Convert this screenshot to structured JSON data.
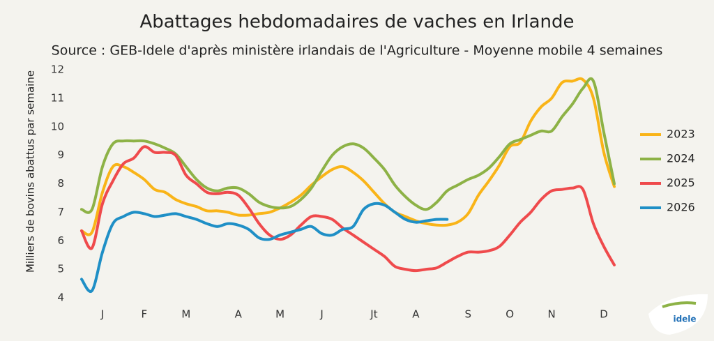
{
  "chart_data": {
    "type": "line",
    "title": "Abattages hebdomadaires de vaches en Irlande",
    "subtitle": "Source : GEB-Idele d'après ministère irlandais de l'Agriculture - Moyenne mobile 4 semaines",
    "y_label": "Milliers de bovins abattus par semaine",
    "categories": [
      null,
      null,
      "J",
      null,
      null,
      null,
      "F",
      null,
      null,
      null,
      "M",
      null,
      null,
      null,
      null,
      "A",
      null,
      null,
      null,
      "M",
      null,
      null,
      null,
      "J",
      null,
      null,
      null,
      null,
      "Jt",
      null,
      null,
      null,
      "A",
      null,
      null,
      null,
      null,
      "S",
      null,
      null,
      null,
      "O",
      null,
      null,
      null,
      "N",
      null,
      null,
      null,
      null,
      "D",
      null
    ],
    "ylim": [
      4,
      12
    ],
    "yticks": [
      4,
      5,
      6,
      7,
      8,
      9,
      10,
      11,
      12
    ],
    "grid": false,
    "legend": "right",
    "series": [
      {
        "name": "2023",
        "color": "#f9b418",
        "values": [
          6.35,
          6.3,
          7.7,
          8.6,
          8.6,
          8.4,
          8.15,
          7.8,
          7.7,
          7.45,
          7.3,
          7.2,
          7.05,
          7.05,
          7.0,
          6.9,
          6.9,
          6.95,
          7.0,
          7.15,
          7.35,
          7.6,
          7.95,
          8.25,
          8.5,
          8.6,
          8.4,
          8.1,
          7.7,
          7.3,
          7.0,
          6.85,
          6.7,
          6.6,
          6.55,
          6.55,
          6.65,
          6.95,
          7.6,
          8.1,
          8.65,
          9.3,
          9.45,
          10.2,
          10.7,
          11.0,
          11.55,
          11.6,
          11.65,
          11.0,
          9.1,
          7.9
        ]
      },
      {
        "name": "2024",
        "color": "#8db246",
        "values": [
          7.1,
          7.1,
          8.6,
          9.4,
          9.5,
          9.5,
          9.5,
          9.4,
          9.25,
          9.05,
          8.6,
          8.15,
          7.85,
          7.75,
          7.85,
          7.85,
          7.65,
          7.35,
          7.2,
          7.15,
          7.2,
          7.45,
          7.85,
          8.45,
          9.0,
          9.3,
          9.4,
          9.25,
          8.9,
          8.5,
          7.95,
          7.55,
          7.25,
          7.1,
          7.35,
          7.75,
          7.95,
          8.15,
          8.3,
          8.55,
          8.95,
          9.4,
          9.55,
          9.7,
          9.85,
          9.85,
          10.35,
          10.8,
          11.35,
          11.6,
          9.8,
          8.0
        ]
      },
      {
        "name": "2025",
        "color": "#ef4a4c",
        "values": [
          6.35,
          5.75,
          7.3,
          8.1,
          8.7,
          8.9,
          9.3,
          9.1,
          9.1,
          9.0,
          8.3,
          8.0,
          7.7,
          7.65,
          7.7,
          7.6,
          7.15,
          6.6,
          6.2,
          6.05,
          6.2,
          6.55,
          6.85,
          6.85,
          6.75,
          6.45,
          6.2,
          5.95,
          5.7,
          5.45,
          5.1,
          5.0,
          4.95,
          5.0,
          5.05,
          5.25,
          5.45,
          5.6,
          5.6,
          5.65,
          5.8,
          6.2,
          6.65,
          7.0,
          7.45,
          7.75,
          7.8,
          7.85,
          7.8,
          6.6,
          5.8,
          5.15
        ]
      },
      {
        "name": "2026",
        "color": "#1f8fc6",
        "values": [
          4.65,
          4.25,
          5.6,
          6.6,
          6.85,
          7.0,
          6.95,
          6.85,
          6.9,
          6.95,
          6.85,
          6.75,
          6.6,
          6.5,
          6.6,
          6.55,
          6.4,
          6.1,
          6.05,
          6.2,
          6.3,
          6.4,
          6.5,
          6.25,
          6.2,
          6.4,
          6.5,
          7.1,
          7.3,
          7.25,
          7.0,
          6.75,
          6.65,
          6.7,
          6.75,
          6.75,
          null,
          null,
          null,
          null,
          null,
          null,
          null,
          null,
          null,
          null,
          null,
          null,
          null,
          null,
          null,
          null
        ]
      }
    ]
  },
  "logo": {
    "text": "idele"
  }
}
